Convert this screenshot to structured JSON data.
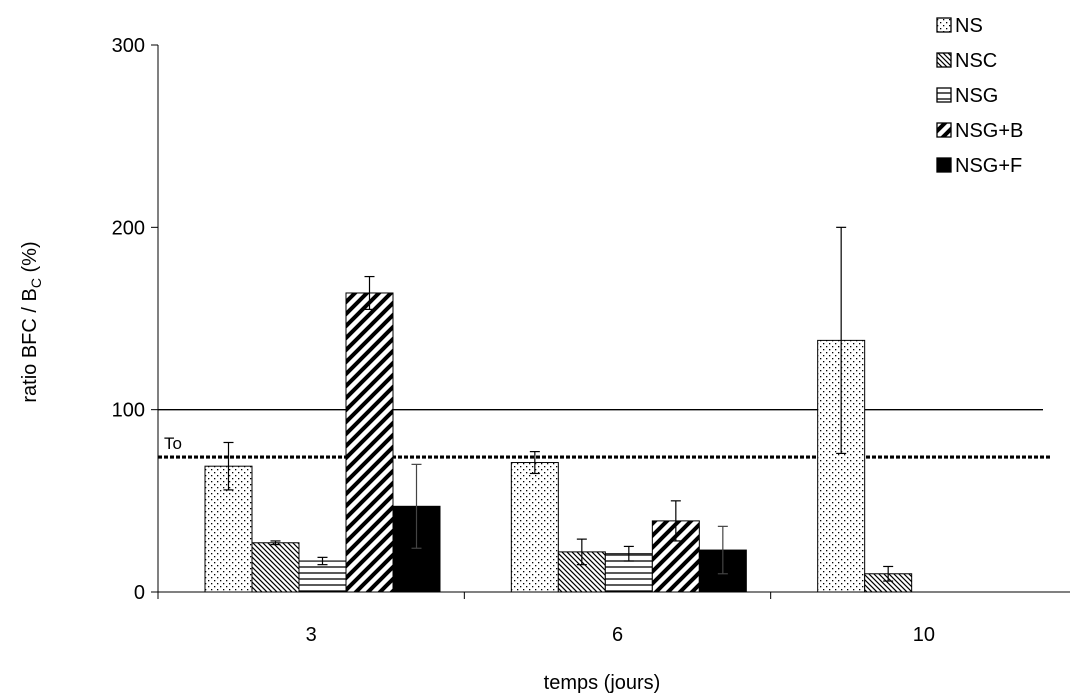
{
  "chart_data": {
    "type": "bar",
    "xlabel": "temps (jours)",
    "ylabel_main": "ratio BFC / B",
    "ylabel_sub": "C",
    "ylabel_tail": " (%)",
    "ylim": [
      0,
      300
    ],
    "yticks": [
      "0",
      "100",
      "200",
      "300"
    ],
    "categories": [
      "3",
      "6",
      "10"
    ],
    "legend_position": "top-right",
    "series": [
      {
        "name": "NS",
        "pattern": "dots",
        "values": [
          69,
          71,
          138
        ],
        "errors": [
          13,
          6,
          62
        ]
      },
      {
        "name": "NSC",
        "pattern": "diag-back",
        "values": [
          27,
          22,
          10
        ],
        "errors": [
          1,
          7,
          4
        ]
      },
      {
        "name": "NSG",
        "pattern": "horizontal",
        "values": [
          17,
          21,
          null
        ],
        "errors": [
          2,
          4,
          null
        ]
      },
      {
        "name": "NSG+B",
        "pattern": "diag-wide",
        "values": [
          164,
          39,
          null
        ],
        "errors": [
          9,
          11,
          null
        ]
      },
      {
        "name": "NSG+F",
        "pattern": "solid",
        "values": [
          47,
          23,
          null
        ],
        "errors": [
          23,
          13,
          null
        ]
      }
    ],
    "reference_lines": [
      {
        "value": 100,
        "style": "solid",
        "label": ""
      },
      {
        "value": 74,
        "style": "dashed",
        "label": "To"
      }
    ],
    "colors": {
      "line": "#000000",
      "background": "#ffffff"
    }
  }
}
